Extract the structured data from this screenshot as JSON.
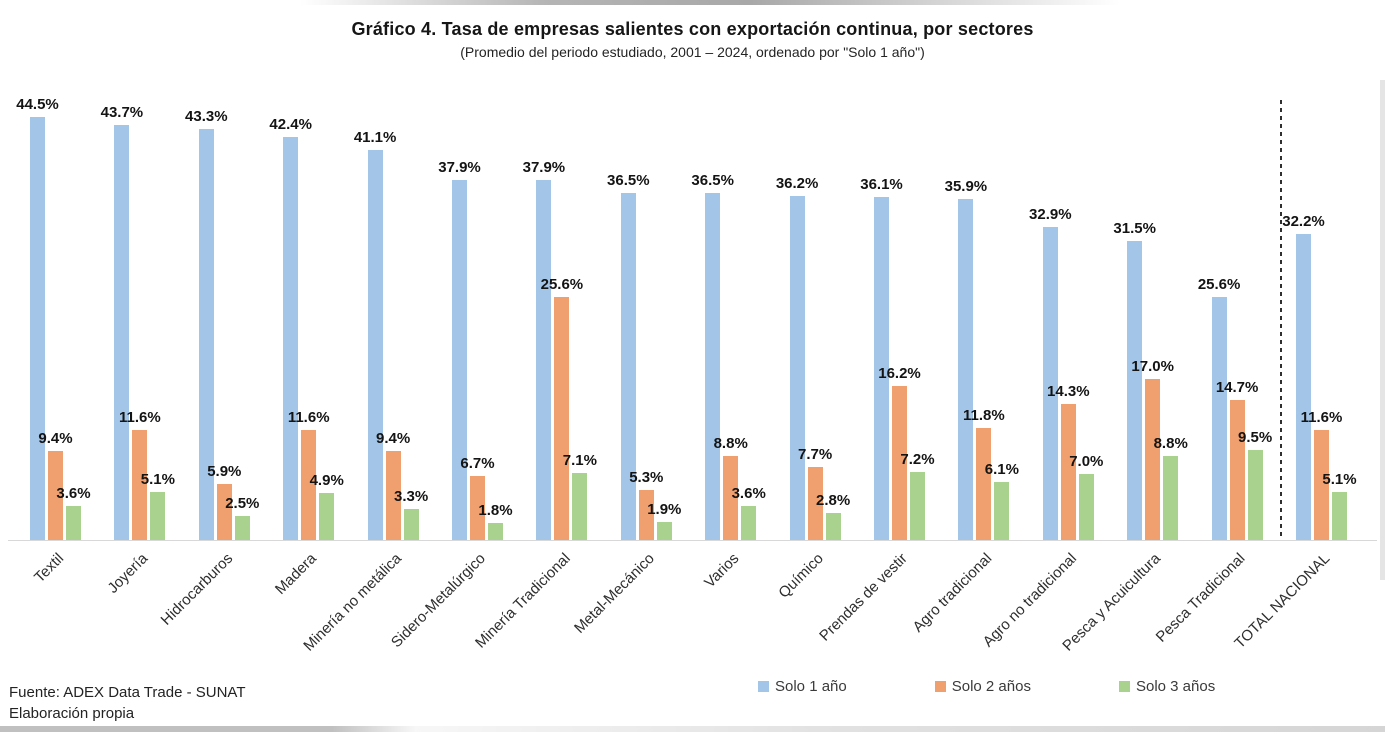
{
  "header": {
    "title": "Gráfico 4. Tasa de empresas salientes con exportación continua, por sectores",
    "subtitle": "(Promedio del periodo estudiado, 2001 – 2024, ordenado por \"Solo 1 año\")"
  },
  "chart_data": {
    "type": "bar",
    "title": "Gráfico 4. Tasa de empresas salientes con exportación continua, por sectores",
    "subtitle": "(Promedio del periodo estudiado, 2001 – 2024, ordenado por \"Solo 1 año\")",
    "categories": [
      "Textil",
      "Joyería",
      "Hidrocarburos",
      "Madera",
      "Minería no metálica",
      "Sidero-Metalúrgico",
      "Minería Tradicional",
      "Metal-Mecánico",
      "Varios",
      "Químico",
      "Prendas de vestir",
      "Agro tradicional",
      "Agro no tradicional",
      "Pesca y Acuicultura",
      "Pesca Tradicional",
      "TOTAL NACIONAL"
    ],
    "series": [
      {
        "name": "Solo 1 año",
        "color": "#A3C6E8",
        "values": [
          44.5,
          43.7,
          43.3,
          42.4,
          41.1,
          37.9,
          37.9,
          36.5,
          36.5,
          36.2,
          36.1,
          35.9,
          32.9,
          31.5,
          25.6,
          32.2
        ]
      },
      {
        "name": "Solo 2 años",
        "color": "#F0A06E",
        "values": [
          9.4,
          11.6,
          5.9,
          11.6,
          9.4,
          6.7,
          25.6,
          5.3,
          8.8,
          7.7,
          16.2,
          11.8,
          14.3,
          17.0,
          14.7,
          11.6
        ]
      },
      {
        "name": "Solo 3 años",
        "color": "#A9D28E",
        "values": [
          3.6,
          5.1,
          2.5,
          4.9,
          3.3,
          1.8,
          7.1,
          1.9,
          3.6,
          2.8,
          7.2,
          6.1,
          7.0,
          8.8,
          9.5,
          5.1
        ]
      }
    ],
    "value_suffix": "%",
    "value_labels": true,
    "separator_before_index": 15,
    "xlabel": "",
    "ylabel": "",
    "ylim": [
      0,
      47
    ],
    "grid": false,
    "legend_position": "bottom"
  },
  "footer": {
    "source": "Fuente: ADEX Data Trade - SUNAT",
    "note": "Elaboración propia"
  }
}
